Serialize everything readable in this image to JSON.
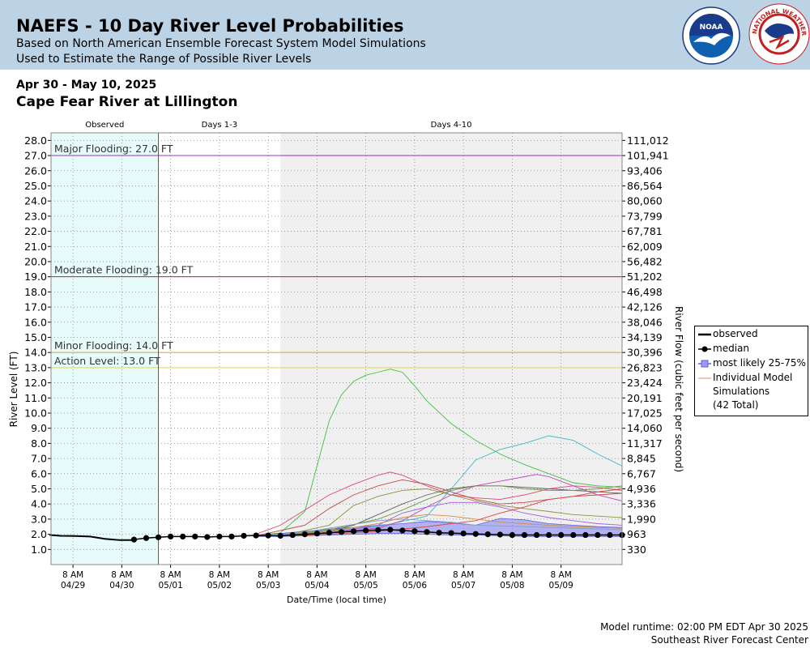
{
  "header": {
    "title": "NAEFS - 10 Day River Level Probabilities",
    "subtitle1": "Based on North American Ensemble Forecast System Model Simulations",
    "subtitle2": "Used to Estimate the Range of Possible River Levels",
    "noaa_logo_text": "NOAA",
    "nws_logo_text": "NATIONAL WEATHER SERVICE"
  },
  "date_range": "Apr 30 - May 10, 2025",
  "location": "Cape Fear River at Lillington",
  "footer": {
    "runtime": "Model runtime: 02:00 PM EDT Apr 30 2025",
    "center": "Southeast River Forecast Center"
  },
  "colors": {
    "observed_bg": "#e8fbfb",
    "forecast_bg": "#f0f0f0",
    "band": "#8080f0",
    "major": "#9a30c0",
    "moderate": "#cc2020",
    "minor": "#e0a040",
    "action": "#e6dc30"
  },
  "chart_data": {
    "type": "line",
    "periods": [
      "Observed",
      "Days 1-3",
      "Days 4-10"
    ],
    "xlabel": "Date/Time (local time)",
    "ylabel": "River Level (FT)",
    "y2label": "River Flow (cubic feet per second)",
    "ylim": [
      0,
      28.5
    ],
    "xlim_days": [
      -1.7,
      10
    ],
    "y_ticks": [
      "1.0",
      "2.0",
      "3.0",
      "4.0",
      "5.0",
      "6.0",
      "7.0",
      "8.0",
      "9.0",
      "10.0",
      "11.0",
      "12.0",
      "13.0",
      "14.0",
      "15.0",
      "16.0",
      "17.0",
      "18.0",
      "19.0",
      "20.0",
      "21.0",
      "22.0",
      "23.0",
      "24.0",
      "25.0",
      "26.0",
      "27.0",
      "28.0"
    ],
    "flow_ticks": [
      "330",
      "963",
      "1,990",
      "3,336",
      "4,936",
      "6,767",
      "8,845",
      "11,317",
      "14,060",
      "17,025",
      "20,191",
      "23,424",
      "26,823",
      "30,396",
      "34,139",
      "38,046",
      "42,126",
      "46,498",
      "51,202",
      "56,482",
      "62,009",
      "67,781",
      "73,799",
      "80,060",
      "86,564",
      "93,406",
      "101,941",
      "111,012"
    ],
    "x_tick_time": "8 AM",
    "x_tick_dates": [
      "04/29",
      "04/30",
      "05/01",
      "05/02",
      "05/03",
      "05/04",
      "05/05",
      "05/06",
      "05/07",
      "05/08",
      "05/09"
    ],
    "thresholds": [
      {
        "label": "Major Flooding: 27.0 FT",
        "value": 27.0,
        "color_key": "major"
      },
      {
        "label": "Moderate Flooding: 19.0 FT",
        "value": 19.0,
        "color_key": "moderate"
      },
      {
        "label": "Minor Flooding: 14.0 FT",
        "value": 14.0,
        "color_key": "minor"
      },
      {
        "label": "Action Level: 13.0 FT",
        "value": 13.0,
        "color_key": "action"
      }
    ],
    "legend": {
      "observed": "observed",
      "median": "median",
      "band": "most likely 25-75%",
      "sims_l1": "Individual Model",
      "sims_l2": "Simulations",
      "sims_l3": "(42 Total)"
    },
    "observed": [
      [
        -1.73,
        1.95
      ],
      [
        -1.5,
        1.9
      ],
      [
        -1.2,
        1.88
      ],
      [
        -0.9,
        1.85
      ],
      [
        -0.6,
        1.7
      ],
      [
        -0.3,
        1.62
      ],
      [
        0,
        1.62
      ]
    ],
    "median": [
      [
        0,
        1.65
      ],
      [
        0.25,
        1.75
      ],
      [
        0.5,
        1.8
      ],
      [
        0.75,
        1.85
      ],
      [
        1,
        1.85
      ],
      [
        1.25,
        1.85
      ],
      [
        1.5,
        1.82
      ],
      [
        1.75,
        1.85
      ],
      [
        2,
        1.85
      ],
      [
        2.25,
        1.9
      ],
      [
        2.5,
        1.92
      ],
      [
        2.75,
        1.92
      ],
      [
        3,
        1.9
      ],
      [
        3.25,
        1.95
      ],
      [
        3.5,
        2.0
      ],
      [
        3.75,
        2.05
      ],
      [
        4,
        2.1
      ],
      [
        4.25,
        2.15
      ],
      [
        4.5,
        2.2
      ],
      [
        4.75,
        2.25
      ],
      [
        5,
        2.28
      ],
      [
        5.25,
        2.3
      ],
      [
        5.5,
        2.25
      ],
      [
        5.75,
        2.2
      ],
      [
        6,
        2.15
      ],
      [
        6.25,
        2.1
      ],
      [
        6.5,
        2.08
      ],
      [
        6.75,
        2.05
      ],
      [
        7,
        2.02
      ],
      [
        7.25,
        2.0
      ],
      [
        7.5,
        1.98
      ],
      [
        7.75,
        1.95
      ],
      [
        8,
        1.95
      ],
      [
        8.25,
        1.95
      ],
      [
        8.5,
        1.95
      ],
      [
        8.75,
        1.95
      ],
      [
        9,
        1.95
      ],
      [
        9.25,
        1.95
      ],
      [
        9.5,
        1.95
      ],
      [
        9.75,
        1.95
      ],
      [
        10,
        1.95
      ]
    ],
    "band_upper": [
      [
        2.5,
        1.95
      ],
      [
        3,
        2.05
      ],
      [
        3.5,
        2.2
      ],
      [
        4,
        2.35
      ],
      [
        4.5,
        2.45
      ],
      [
        5,
        2.6
      ],
      [
        5.5,
        2.7
      ],
      [
        6,
        2.85
      ],
      [
        6.5,
        2.75
      ],
      [
        7,
        2.6
      ],
      [
        7.5,
        3.05
      ],
      [
        8,
        2.95
      ],
      [
        8.5,
        2.7
      ],
      [
        9,
        2.6
      ],
      [
        9.5,
        2.5
      ],
      [
        10,
        2.45
      ]
    ],
    "band_lower": [
      [
        2.5,
        1.85
      ],
      [
        3,
        1.85
      ],
      [
        3.5,
        1.9
      ],
      [
        4,
        1.95
      ],
      [
        4.5,
        2.0
      ],
      [
        5,
        2.05
      ],
      [
        5.5,
        2.05
      ],
      [
        6,
        2.0
      ],
      [
        6.5,
        1.95
      ],
      [
        7,
        1.95
      ],
      [
        7.5,
        1.9
      ],
      [
        8,
        1.85
      ],
      [
        8.5,
        1.85
      ],
      [
        9,
        1.85
      ],
      [
        9.5,
        1.85
      ],
      [
        10,
        1.85
      ]
    ],
    "simulations": [
      {
        "color": "#40c040",
        "points": [
          [
            2.5,
            1.9
          ],
          [
            3,
            2.1
          ],
          [
            3.5,
            3.5
          ],
          [
            3.75,
            6.5
          ],
          [
            4,
            9.5
          ],
          [
            4.25,
            11.2
          ],
          [
            4.5,
            12.1
          ],
          [
            4.75,
            12.5
          ],
          [
            5,
            12.7
          ],
          [
            5.25,
            12.9
          ],
          [
            5.5,
            12.7
          ],
          [
            5.75,
            11.8
          ],
          [
            6,
            10.8
          ],
          [
            6.5,
            9.3
          ],
          [
            7,
            8.2
          ],
          [
            7.5,
            7.3
          ],
          [
            8,
            6.6
          ],
          [
            8.5,
            6.0
          ],
          [
            9,
            5.4
          ],
          [
            9.5,
            5.2
          ],
          [
            10,
            5.1
          ]
        ]
      },
      {
        "color": "#40b8c8",
        "points": [
          [
            3,
            2.0
          ],
          [
            4,
            2.2
          ],
          [
            5,
            2.5
          ],
          [
            6,
            3.2
          ],
          [
            6.5,
            5.0
          ],
          [
            7,
            6.9
          ],
          [
            7.5,
            7.6
          ],
          [
            8,
            8.0
          ],
          [
            8.5,
            8.5
          ],
          [
            9,
            8.2
          ],
          [
            9.5,
            7.3
          ],
          [
            10,
            6.5
          ]
        ]
      },
      {
        "color": "#e04878",
        "points": [
          [
            2.5,
            2.0
          ],
          [
            3,
            2.6
          ],
          [
            3.5,
            3.6
          ],
          [
            4,
            4.6
          ],
          [
            4.5,
            5.3
          ],
          [
            5,
            5.9
          ],
          [
            5.25,
            6.1
          ],
          [
            5.5,
            5.9
          ],
          [
            6,
            5.2
          ],
          [
            6.5,
            4.6
          ],
          [
            7,
            4.4
          ],
          [
            7.5,
            4.3
          ],
          [
            8,
            4.6
          ],
          [
            8.5,
            5.0
          ],
          [
            9,
            5.2
          ],
          [
            9.5,
            5.1
          ],
          [
            10,
            4.9
          ]
        ]
      },
      {
        "color": "#c04848",
        "points": [
          [
            2.5,
            1.9
          ],
          [
            3.5,
            2.6
          ],
          [
            4,
            3.7
          ],
          [
            4.5,
            4.6
          ],
          [
            5,
            5.2
          ],
          [
            5.5,
            5.6
          ],
          [
            6,
            5.3
          ],
          [
            6.5,
            4.8
          ],
          [
            7,
            4.3
          ],
          [
            7.5,
            4.0
          ],
          [
            8,
            4.1
          ],
          [
            8.5,
            4.3
          ],
          [
            9,
            4.5
          ],
          [
            9.5,
            4.6
          ],
          [
            10,
            4.7
          ]
        ]
      },
      {
        "color": "#909040",
        "points": [
          [
            3,
            1.9
          ],
          [
            4,
            2.6
          ],
          [
            4.5,
            3.9
          ],
          [
            5,
            4.5
          ],
          [
            5.5,
            4.9
          ],
          [
            6,
            5.0
          ],
          [
            6.5,
            4.6
          ],
          [
            7,
            4.2
          ],
          [
            7.5,
            3.9
          ],
          [
            8,
            3.7
          ],
          [
            8.5,
            3.5
          ],
          [
            9,
            3.3
          ],
          [
            9.5,
            3.2
          ],
          [
            10,
            3.1
          ]
        ]
      },
      {
        "color": "#606060",
        "points": [
          [
            3,
            1.9
          ],
          [
            4,
            2.2
          ],
          [
            4.5,
            2.6
          ],
          [
            5,
            3.3
          ],
          [
            5.5,
            4.0
          ],
          [
            6,
            4.6
          ],
          [
            6.5,
            5.0
          ],
          [
            7,
            5.2
          ],
          [
            7.5,
            5.2
          ],
          [
            8,
            5.1
          ],
          [
            8.5,
            5.0
          ],
          [
            9,
            4.9
          ],
          [
            9.5,
            4.8
          ],
          [
            10,
            4.7
          ]
        ]
      },
      {
        "color": "#6a9a40",
        "points": [
          [
            3,
            1.9
          ],
          [
            4,
            2.3
          ],
          [
            5,
            3.0
          ],
          [
            5.5,
            3.6
          ],
          [
            6,
            4.3
          ],
          [
            6.5,
            4.9
          ],
          [
            7,
            5.2
          ],
          [
            7.5,
            5.2
          ],
          [
            8,
            5.0
          ],
          [
            8.5,
            4.9
          ],
          [
            9,
            4.9
          ],
          [
            9.5,
            5.0
          ],
          [
            10,
            5.2
          ]
        ]
      },
      {
        "color": "#c040c0",
        "points": [
          [
            3,
            1.9
          ],
          [
            4,
            2.1
          ],
          [
            5,
            2.4
          ],
          [
            5.5,
            2.9
          ],
          [
            6,
            3.8
          ],
          [
            6.5,
            4.6
          ],
          [
            7,
            5.2
          ],
          [
            7.5,
            5.5
          ],
          [
            8,
            5.8
          ],
          [
            8.25,
            5.95
          ],
          [
            8.5,
            5.8
          ],
          [
            9,
            5.2
          ],
          [
            9.5,
            4.6
          ],
          [
            10,
            4.2
          ]
        ]
      },
      {
        "color": "#e04040",
        "points": [
          [
            3,
            1.9
          ],
          [
            4,
            2.0
          ],
          [
            5,
            2.2
          ],
          [
            6,
            2.5
          ],
          [
            7,
            2.9
          ],
          [
            7.5,
            3.4
          ],
          [
            8,
            3.8
          ],
          [
            8.5,
            4.3
          ],
          [
            9,
            4.5
          ],
          [
            9.5,
            4.8
          ],
          [
            10,
            5.0
          ]
        ]
      },
      {
        "color": "#a060e0",
        "points": [
          [
            3,
            1.9
          ],
          [
            4,
            2.1
          ],
          [
            5,
            2.6
          ],
          [
            5.5,
            3.4
          ],
          [
            6,
            3.8
          ],
          [
            6.5,
            4.1
          ],
          [
            7,
            4.1
          ],
          [
            7.5,
            3.8
          ],
          [
            8,
            3.4
          ],
          [
            8.5,
            3.1
          ],
          [
            9,
            2.9
          ],
          [
            9.5,
            2.7
          ],
          [
            10,
            2.6
          ]
        ]
      },
      {
        "color": "#d09040",
        "points": [
          [
            3,
            1.9
          ],
          [
            4,
            2.2
          ],
          [
            5,
            2.7
          ],
          [
            5.5,
            3.1
          ],
          [
            6,
            3.3
          ],
          [
            6.5,
            3.2
          ],
          [
            7,
            3.0
          ],
          [
            7.5,
            2.8
          ],
          [
            8,
            2.7
          ],
          [
            8.5,
            2.6
          ],
          [
            9,
            2.5
          ],
          [
            10,
            2.4
          ]
        ]
      },
      {
        "color": "#80a0d0",
        "points": [
          [
            3,
            1.9
          ],
          [
            4,
            2.4
          ],
          [
            5,
            2.9
          ],
          [
            5.5,
            3.0
          ],
          [
            6,
            2.9
          ],
          [
            6.5,
            2.8
          ],
          [
            7,
            2.6
          ],
          [
            8,
            2.5
          ],
          [
            9,
            2.4
          ],
          [
            10,
            2.3
          ]
        ]
      }
    ]
  }
}
